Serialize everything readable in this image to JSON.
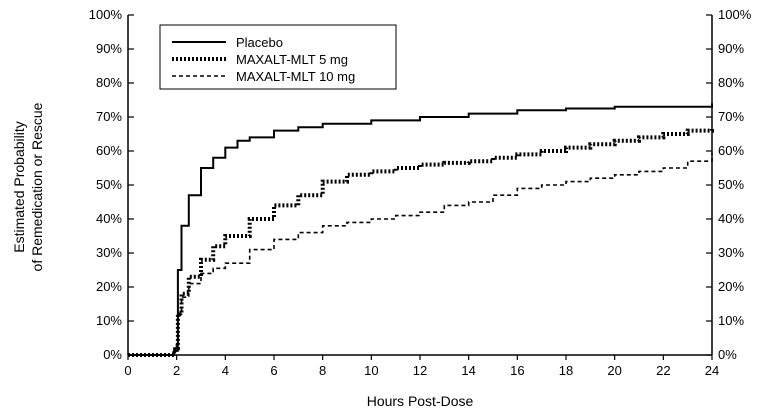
{
  "chart_data": {
    "type": "line",
    "title": "",
    "xlabel": "Hours Post-Dose",
    "ylabel_lines": [
      "Estimated Probability",
      "of Remedication or Rescue"
    ],
    "xlim": [
      0,
      24
    ],
    "ylim": [
      0,
      100
    ],
    "x_ticks": [
      "0",
      "2",
      "4",
      "6",
      "8",
      "10",
      "12",
      "14",
      "16",
      "18",
      "20",
      "22",
      "24"
    ],
    "y_ticks": [
      "0%",
      "10%",
      "20%",
      "30%",
      "40%",
      "50%",
      "60%",
      "70%",
      "80%",
      "90%",
      "100%"
    ],
    "legend_position": "top-left",
    "grid": false,
    "series": [
      {
        "name": "Placebo",
        "style": "solid",
        "x": [
          0,
          1.5,
          1.9,
          2.0,
          2.05,
          2.2,
          2.5,
          3.0,
          3.5,
          4.0,
          4.5,
          5.0,
          6.0,
          7.0,
          8.0,
          10.0,
          12.0,
          14.0,
          16.0,
          18.0,
          20.0,
          22.0,
          24.0
        ],
        "y": [
          0,
          0,
          2,
          3,
          25,
          38,
          47,
          55,
          58,
          61,
          63,
          64,
          66,
          67,
          68,
          69,
          70,
          71,
          72,
          72.5,
          73,
          73,
          74
        ]
      },
      {
        "name": "MAXALT-MLT 5 mg",
        "style": "dotted",
        "x": [
          0,
          1.5,
          1.9,
          2.0,
          2.05,
          2.2,
          2.5,
          3.0,
          3.5,
          4.0,
          5.0,
          6.0,
          7.0,
          8.0,
          9.0,
          10.0,
          11.0,
          12.0,
          13.0,
          14.0,
          15.0,
          16.0,
          17.0,
          18.0,
          19.0,
          20.0,
          21.0,
          22.0,
          23.0,
          24.0
        ],
        "y": [
          0,
          0,
          1.5,
          2,
          12,
          18,
          23,
          28,
          32,
          35,
          40,
          44,
          47,
          51,
          53,
          54,
          55,
          56,
          56.5,
          57,
          58,
          59,
          60,
          61,
          62,
          63,
          64,
          65,
          66,
          67
        ]
      },
      {
        "name": "MAXALT-MLT 10 mg",
        "style": "dashed",
        "x": [
          0,
          1.5,
          1.9,
          2.0,
          2.05,
          2.2,
          2.5,
          3.0,
          3.5,
          4.0,
          5.0,
          6.0,
          7.0,
          8.0,
          9.0,
          10.0,
          11.0,
          12.0,
          13.0,
          14.0,
          15.0,
          16.0,
          17.0,
          18.0,
          19.0,
          20.0,
          21.0,
          22.0,
          23.0,
          24.0
        ],
        "y": [
          0,
          0,
          1.5,
          2,
          12,
          17,
          21,
          24,
          25.5,
          27,
          31,
          34,
          36,
          38,
          39,
          40,
          41,
          42,
          44,
          45,
          47,
          49,
          50,
          51,
          52,
          53,
          54,
          55,
          57,
          59.5
        ]
      }
    ]
  }
}
